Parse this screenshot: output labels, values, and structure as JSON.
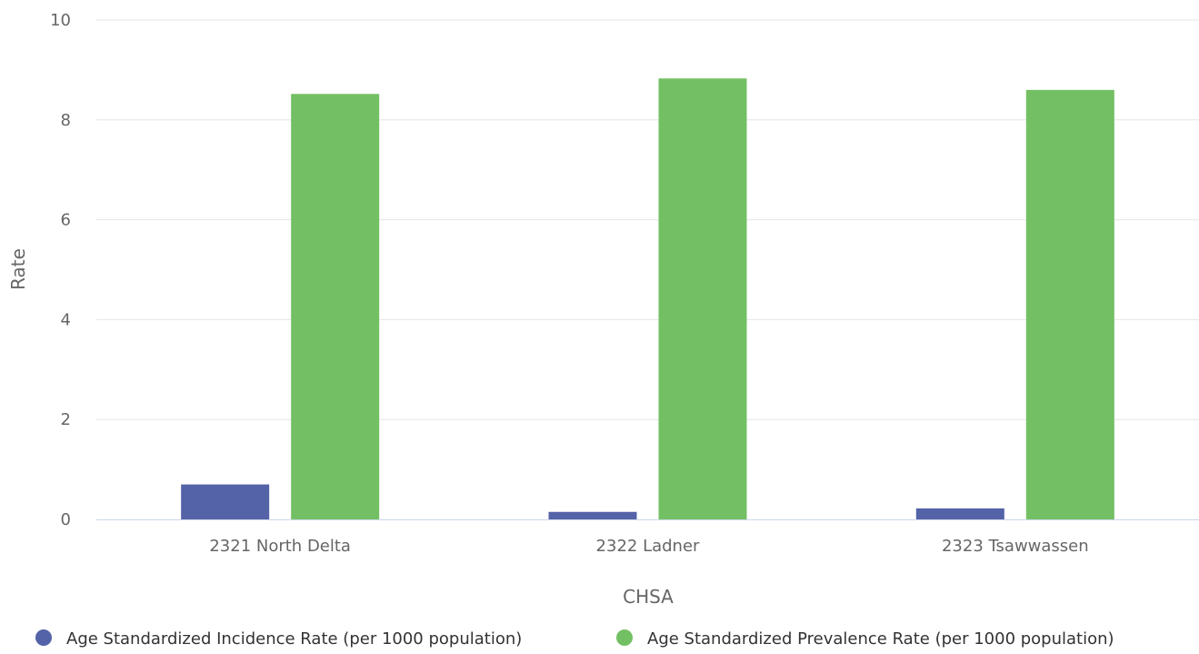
{
  "chart_data": {
    "type": "bar",
    "title": "",
    "xlabel": "CHSA",
    "ylabel": "Rate",
    "categories": [
      "2321 North Delta",
      "2322 Ladner",
      "2323 Tsawwassen"
    ],
    "ylim": [
      0,
      10
    ],
    "yticks": [
      0,
      2,
      4,
      6,
      8,
      10
    ],
    "grid": true,
    "legend_position": "bottom",
    "series": [
      {
        "name": "Age Standardized Incidence Rate (per 1000 population)",
        "color": "#5463a7",
        "values": [
          0.7,
          0.15,
          0.22
        ]
      },
      {
        "name": "Age Standardized Prevalence Rate (per 1000 population)",
        "color": "#73c064",
        "values": [
          8.52,
          8.83,
          8.6
        ]
      }
    ]
  }
}
